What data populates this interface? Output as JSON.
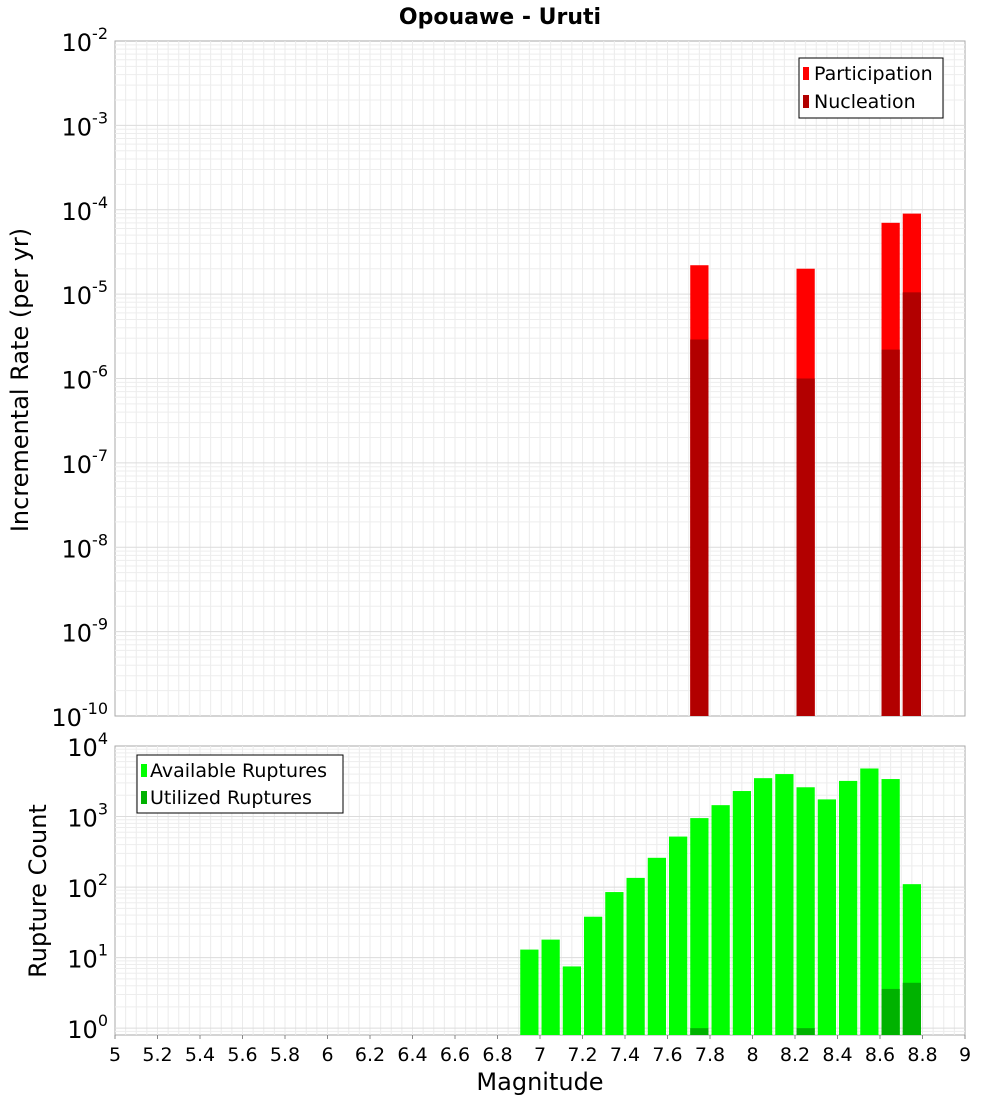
{
  "chart_data": [
    {
      "type": "bar",
      "title": "Opouawe - Uruti",
      "xlabel": "",
      "ylabel": "Incremental Rate (per yr)",
      "yscale": "log",
      "ylim": [
        1e-10,
        0.01
      ],
      "xlim": [
        5,
        9
      ],
      "grid": true,
      "legend_position": "top-right",
      "series": [
        {
          "name": "Participation",
          "color": "#ff0000",
          "points": [
            {
              "x": 7.75,
              "y": 2.2e-05
            },
            {
              "x": 8.25,
              "y": 2e-05
            },
            {
              "x": 8.65,
              "y": 7e-05
            },
            {
              "x": 8.75,
              "y": 9e-05
            }
          ]
        },
        {
          "name": "Nucleation",
          "color": "#b20000",
          "points": [
            {
              "x": 7.75,
              "y": 2.9e-06
            },
            {
              "x": 8.25,
              "y": 1e-06
            },
            {
              "x": 8.65,
              "y": 2.2e-06
            },
            {
              "x": 8.75,
              "y": 1.05e-05
            }
          ]
        }
      ]
    },
    {
      "type": "bar",
      "title": "",
      "xlabel": "Magnitude",
      "ylabel": "Rupture Count",
      "yscale": "log",
      "ylim": [
        0.8,
        10000
      ],
      "xlim": [
        5,
        9
      ],
      "grid": true,
      "legend_position": "top-left",
      "x_ticks": [
        "5",
        "5.2",
        "5.4",
        "5.6",
        "5.8",
        "6",
        "6.2",
        "6.4",
        "6.6",
        "6.8",
        "7",
        "7.2",
        "7.4",
        "7.6",
        "7.8",
        "8",
        "8.2",
        "8.4",
        "8.6",
        "8.8",
        "9"
      ],
      "series": [
        {
          "name": "Available Ruptures",
          "color": "#00ff00",
          "points": [
            {
              "x": 6.95,
              "y": 13
            },
            {
              "x": 7.05,
              "y": 18
            },
            {
              "x": 7.15,
              "y": 7.5
            },
            {
              "x": 7.25,
              "y": 38
            },
            {
              "x": 7.35,
              "y": 85
            },
            {
              "x": 7.45,
              "y": 135
            },
            {
              "x": 7.55,
              "y": 260
            },
            {
              "x": 7.65,
              "y": 520
            },
            {
              "x": 7.75,
              "y": 950
            },
            {
              "x": 7.85,
              "y": 1450
            },
            {
              "x": 7.95,
              "y": 2300
            },
            {
              "x": 8.05,
              "y": 3500
            },
            {
              "x": 8.15,
              "y": 4000
            },
            {
              "x": 8.25,
              "y": 2600
            },
            {
              "x": 8.35,
              "y": 1750
            },
            {
              "x": 8.45,
              "y": 3200
            },
            {
              "x": 8.55,
              "y": 4800
            },
            {
              "x": 8.65,
              "y": 3400
            },
            {
              "x": 8.75,
              "y": 110
            }
          ]
        },
        {
          "name": "Utilized Ruptures",
          "color": "#00b200",
          "points": [
            {
              "x": 7.75,
              "y": 1
            },
            {
              "x": 8.25,
              "y": 1
            },
            {
              "x": 8.65,
              "y": 3.6
            },
            {
              "x": 8.75,
              "y": 4.4
            }
          ]
        }
      ]
    }
  ]
}
